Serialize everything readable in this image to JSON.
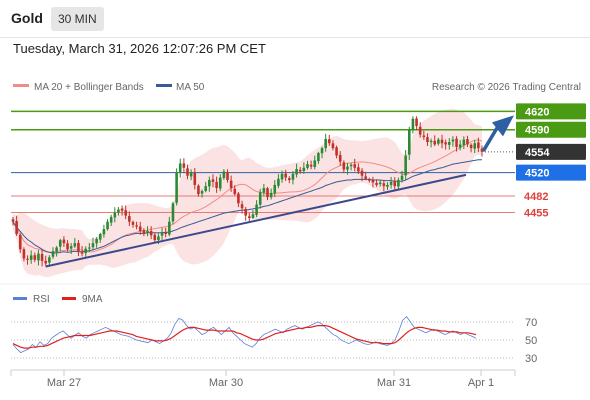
{
  "header": {
    "asset": "Gold",
    "timeframe": "30 MIN",
    "datetime": "Tuesday, March 31, 2026 12:07:26 PM CET"
  },
  "legend": {
    "items": [
      {
        "label": "MA 20 + Bollinger Bands",
        "color": "#f28b86",
        "icon": "line-swatch"
      },
      {
        "label": "MA 50",
        "color": "#3a5a95",
        "icon": "line-swatch"
      }
    ],
    "copyright": "Research © 2026 Trading Central"
  },
  "rsi_legend": {
    "items": [
      {
        "label": "RSI",
        "color": "#5b7fd6",
        "icon": "line-swatch"
      },
      {
        "label": "9MA",
        "color": "#e0201d",
        "icon": "line-swatch"
      }
    ]
  },
  "colors": {
    "up_candle": "#2a8a34",
    "down_candle": "#c0322a",
    "bollinger_fill": "#fce3e3",
    "resistance": "#4a9a13",
    "pivot": "#2e5fa3",
    "support": "#e87a78",
    "last_price_tag": "#333333",
    "arrow": "#2e5fa3"
  },
  "chart_data": [
    {
      "type": "candlestick",
      "x_ticks": [
        "Mar 27",
        "Mar 30",
        "Mar 31",
        "Apr 1"
      ],
      "ylim": [
        4350,
        4650
      ],
      "last_price": 4554,
      "levels": [
        {
          "label": "4620",
          "value": 4620,
          "kind": "resistance"
        },
        {
          "label": "4590",
          "value": 4590,
          "kind": "resistance"
        },
        {
          "label": "4554",
          "value": 4554,
          "kind": "last"
        },
        {
          "label": "4520",
          "value": 4520,
          "kind": "pivot"
        },
        {
          "label": "4482",
          "value": 4482,
          "kind": "support"
        },
        {
          "label": "4455",
          "value": 4455,
          "kind": "support"
        }
      ],
      "series": [
        {
          "name": "MA 20 + Bollinger Bands"
        },
        {
          "name": "MA 50"
        }
      ],
      "close": [
        4440,
        4420,
        4395,
        4380,
        4378,
        4385,
        4378,
        4388,
        4376,
        4372,
        4382,
        4392,
        4398,
        4410,
        4405,
        4395,
        4400,
        4405,
        4392,
        4388,
        4396,
        4398,
        4405,
        4412,
        4420,
        4428,
        4440,
        4448,
        4455,
        4460,
        4458,
        4450,
        4440,
        4435,
        4432,
        4425,
        4420,
        4425,
        4418,
        4410,
        4416,
        4423,
        4420,
        4440,
        4470,
        4520,
        4535,
        4528,
        4515,
        4520,
        4500,
        4485,
        4490,
        4498,
        4508,
        4505,
        4495,
        4512,
        4522,
        4508,
        4495,
        4485,
        4470,
        4462,
        4450,
        4446,
        4452,
        4468,
        4488,
        4495,
        4480,
        4487,
        4500,
        4510,
        4518,
        4512,
        4508,
        4518,
        4526,
        4522,
        4528,
        4534,
        4530,
        4540,
        4552,
        4560,
        4575,
        4568,
        4560,
        4548,
        4538,
        4525,
        4530,
        4533,
        4528,
        4522,
        4515,
        4510,
        4508,
        4504,
        4500,
        4504,
        4498,
        4500,
        4505,
        4498,
        4508,
        4515,
        4548,
        4590,
        4608,
        4596,
        4582,
        4578,
        4570,
        4572,
        4566,
        4574,
        4568,
        4566,
        4570,
        4574,
        4562,
        4566,
        4574,
        4566,
        4560,
        4568,
        4560,
        4554
      ],
      "ma50": [
        4440,
        4431,
        4424,
        4417,
        4411,
        4407,
        4402,
        4399,
        4395,
        4392,
        4390,
        4389,
        4389,
        4390,
        4391,
        4390,
        4391,
        4392,
        4391,
        4391,
        4392,
        4393,
        4394,
        4396,
        4398,
        4400,
        4403,
        4406,
        4409,
        4412,
        4415,
        4417,
        4418,
        4420,
        4421,
        4421,
        4421,
        4422,
        4422,
        4422,
        4422,
        4422,
        4423,
        4423,
        4425,
        4427,
        4430,
        4432,
        4434,
        4436,
        4438,
        4440,
        4442,
        4444,
        4446,
        4448,
        4450,
        4452,
        4454,
        4455,
        4456,
        4457,
        4458,
        4459,
        4459,
        4460,
        4461,
        4462,
        4463,
        4465,
        4466,
        4468,
        4470,
        4472,
        4474,
        4476,
        4478,
        4480,
        4482,
        4484,
        4486,
        4488,
        4490,
        4492,
        4494,
        4496,
        4499,
        4501,
        4503,
        4505,
        4506,
        4507,
        4508,
        4508,
        4509,
        4509,
        4509,
        4509,
        4509,
        4508,
        4508,
        4508,
        4507,
        4507,
        4507,
        4506,
        4506,
        4506,
        4508,
        4511,
        4514,
        4516,
        4518,
        4520,
        4522,
        4524,
        4525,
        4527,
        4528,
        4530,
        4532,
        4534,
        4535,
        4536,
        4537,
        4538,
        4539,
        4540,
        4541,
        4541
      ]
    },
    {
      "type": "line",
      "yticks": [
        70,
        50,
        30
      ],
      "ylim": [
        20,
        80
      ],
      "series": [
        {
          "name": "RSI",
          "values": [
            45,
            40,
            36,
            38,
            40,
            45,
            42,
            48,
            44,
            46,
            52,
            55,
            58,
            60,
            56,
            52,
            55,
            58,
            54,
            52,
            56,
            58,
            60,
            62,
            64,
            62,
            60,
            58,
            56,
            55,
            54,
            52,
            50,
            49,
            48,
            47,
            50,
            48,
            46,
            49,
            52,
            58,
            68,
            74,
            72,
            66,
            62,
            64,
            60,
            56,
            58,
            62,
            64,
            60,
            56,
            60,
            64,
            58,
            54,
            50,
            46,
            44,
            42,
            46,
            52,
            56,
            58,
            60,
            62,
            60,
            58,
            62,
            64,
            66,
            64,
            62,
            64,
            66,
            68,
            70,
            68,
            64,
            60,
            56,
            54,
            50,
            48,
            46,
            48,
            50,
            48,
            46,
            45,
            46,
            48,
            46,
            45,
            44,
            46,
            50,
            60,
            72,
            76,
            70,
            64,
            62,
            60,
            58,
            60,
            62,
            60,
            58,
            56,
            58,
            60,
            58,
            56,
            58,
            56,
            54,
            52
          ]
        },
        {
          "name": "9MA",
          "values": [
            46,
            44,
            42,
            41,
            41,
            42,
            42,
            43,
            43,
            44,
            46,
            48,
            50,
            52,
            53,
            54,
            55,
            55,
            55,
            55,
            55,
            56,
            57,
            58,
            59,
            60,
            60,
            60,
            59,
            58,
            57,
            56,
            54,
            53,
            52,
            51,
            50,
            49,
            49,
            49,
            50,
            52,
            55,
            58,
            61,
            63,
            64,
            64,
            63,
            62,
            61,
            61,
            61,
            60,
            60,
            60,
            60,
            60,
            58,
            57,
            55,
            53,
            51,
            50,
            50,
            51,
            53,
            55,
            57,
            58,
            59,
            60,
            61,
            62,
            63,
            63,
            64,
            64,
            65,
            66,
            66,
            66,
            65,
            63,
            61,
            59,
            57,
            55,
            53,
            51,
            50,
            49,
            48,
            47,
            47,
            47,
            46,
            46,
            46,
            47,
            50,
            54,
            58,
            61,
            63,
            64,
            64,
            63,
            62,
            61,
            61,
            60,
            60,
            59,
            59,
            59,
            58,
            58,
            58,
            57,
            56
          ]
        }
      ]
    }
  ]
}
